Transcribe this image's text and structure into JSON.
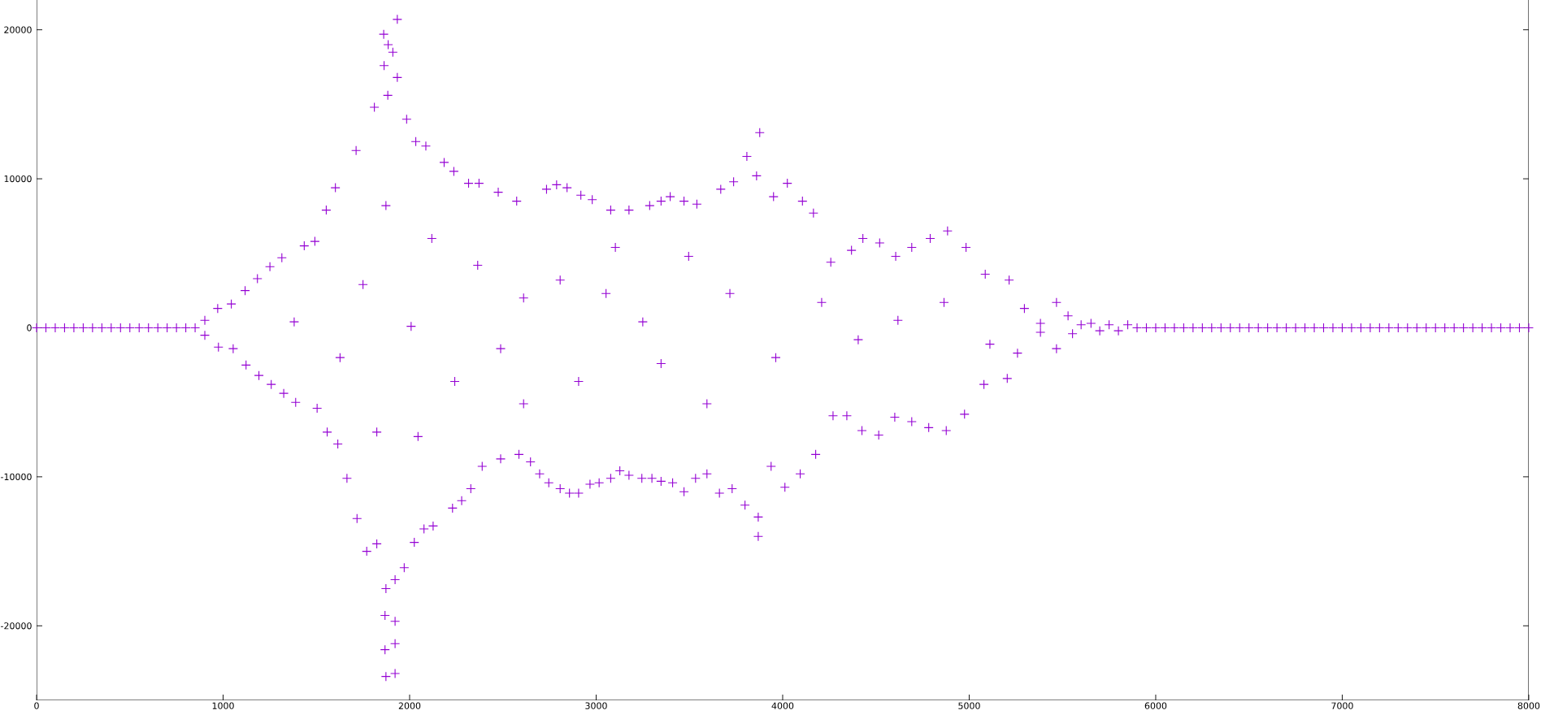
{
  "chart_data": {
    "type": "scatter",
    "color": "#9400d3",
    "marker": "cross",
    "xlim": [
      0,
      8000
    ],
    "ylim": [
      -25000,
      22000
    ],
    "xticks": [
      0,
      1000,
      2000,
      3000,
      4000,
      5000,
      6000,
      7000,
      8000
    ],
    "yticks": [
      -20000,
      -10000,
      0,
      10000,
      20000
    ],
    "x": [
      0,
      50,
      100,
      150,
      200,
      250,
      300,
      350,
      400,
      450,
      500,
      550,
      600,
      650,
      700,
      750,
      800,
      850,
      902,
      902,
      971,
      975,
      1044,
      1054,
      1118,
      1123,
      1184,
      1192,
      1251,
      1258,
      1315,
      1325,
      1381,
      1389,
      1435,
      1492,
      1504,
      1553,
      1558,
      1602,
      1615,
      1627,
      1664,
      1713,
      1718,
      1750,
      1770,
      1811,
      1824,
      1824,
      1861,
      1863,
      1868,
      1868,
      1873,
      1873,
      1873,
      1883,
      1885,
      1910,
      1922,
      1922,
      1922,
      1922,
      1934,
      1934,
      1971,
      1984,
      2008,
      2025,
      2033,
      2045,
      2077,
      2087,
      2119,
      2126,
      2185,
      2230,
      2237,
      2242,
      2279,
      2316,
      2328,
      2365,
      2372,
      2389,
      2475,
      2488,
      2488,
      2574,
      2586,
      2611,
      2611,
      2648,
      2697,
      2734,
      2746,
      2788,
      2807,
      2807,
      2844,
      2857,
      2906,
      2906,
      2918,
      2967,
      2979,
      3016,
      3053,
      3078,
      3078,
      3103,
      3127,
      3176,
      3176,
      3245,
      3250,
      3287,
      3299,
      3348,
      3348,
      3348,
      3397,
      3410,
      3471,
      3471,
      3496,
      3533,
      3540,
      3594,
      3594,
      3661,
      3668,
      3717,
      3729,
      3737,
      3798,
      3808,
      3860,
      3869,
      3869,
      3877,
      3938,
      3951,
      3963,
      4012,
      4025,
      4094,
      4106,
      4165,
      4177,
      4209,
      4258,
      4270,
      4344,
      4369,
      4405,
      4425,
      4430,
      4515,
      4520,
      4601,
      4606,
      4618,
      4692,
      4692,
      4783,
      4791,
      4865,
      4877,
      4884,
      4975,
      4983,
      5079,
      5086,
      5111,
      5204,
      5214,
      5259,
      5296,
      5382,
      5382,
      5468,
      5468,
      5530,
      5554,
      5600,
      5653,
      5700,
      5750,
      5800,
      5850,
      5900,
      5950,
      6000,
      6050,
      6100,
      6150,
      6200,
      6250,
      6300,
      6350,
      6400,
      6450,
      6500,
      6550,
      6600,
      6650,
      6700,
      6750,
      6800,
      6850,
      6900,
      6950,
      7000,
      7050,
      7100,
      7150,
      7200,
      7250,
      7300,
      7350,
      7400,
      7450,
      7500,
      7550,
      7600,
      7650,
      7700,
      7750,
      7800,
      7850,
      7900,
      7950,
      8000
    ],
    "values": [
      0,
      0,
      0,
      0,
      0,
      0,
      0,
      0,
      0,
      0,
      0,
      0,
      0,
      0,
      0,
      0,
      0,
      0,
      500,
      -500,
      1300,
      -1300,
      1600,
      -1400,
      2500,
      -2500,
      3300,
      -3200,
      4100,
      -3800,
      4700,
      -4400,
      400,
      -5000,
      5500,
      5800,
      -5400,
      7900,
      -7000,
      9400,
      -7800,
      -2000,
      -10100,
      11900,
      -12800,
      2900,
      -15000,
      14800,
      -14500,
      -7000,
      19700,
      17600,
      -21600,
      -19300,
      -17500,
      -23400,
      8200,
      15600,
      19000,
      18500,
      -23200,
      -21200,
      -19700,
      -16900,
      20700,
      16800,
      -16100,
      14000,
      100,
      -14400,
      12500,
      -7300,
      -13500,
      12200,
      6000,
      -13300,
      11100,
      -12100,
      10500,
      -3600,
      -11600,
      9700,
      -10800,
      4200,
      9700,
      -9300,
      9100,
      -8800,
      -1400,
      8500,
      -8500,
      2000,
      -5100,
      -9000,
      -9800,
      9300,
      -10400,
      9600,
      3200,
      -10800,
      9400,
      -11100,
      -11100,
      -3600,
      8900,
      -10500,
      8600,
      -10400,
      2300,
      7900,
      -10100,
      5400,
      -9600,
      7900,
      -9900,
      -10100,
      400,
      8200,
      -10100,
      8500,
      -10300,
      -2400,
      8800,
      -10400,
      8500,
      -11000,
      4800,
      -10100,
      8300,
      -9800,
      -5100,
      -11100,
      9300,
      2300,
      -10800,
      9800,
      -11900,
      11500,
      10200,
      -14000,
      -12700,
      13100,
      -9300,
      8800,
      -2000,
      -10700,
      9700,
      -9800,
      8500,
      7700,
      -8500,
      1700,
      4400,
      -5900,
      -5900,
      5200,
      -800,
      -6900,
      6000,
      -7200,
      5700,
      -6000,
      4800,
      500,
      5400,
      -6300,
      -6700,
      6000,
      1700,
      -6900,
      6500,
      -5800,
      5400,
      -3800,
      3600,
      -1100,
      -3400,
      3200,
      -1700,
      1300,
      300,
      -300,
      1700,
      -1400,
      800,
      -400,
      200,
      300,
      -200,
      200,
      -200,
      200,
      0,
      0,
      0,
      0,
      0,
      0,
      0,
      0,
      0,
      0,
      0,
      0,
      0,
      0,
      0,
      0,
      0,
      0,
      0,
      0,
      0,
      0,
      0,
      0,
      0,
      0,
      0,
      0,
      0,
      0,
      0,
      0,
      0,
      0,
      0,
      0,
      0,
      0,
      0,
      0,
      0,
      0,
      0
    ]
  }
}
